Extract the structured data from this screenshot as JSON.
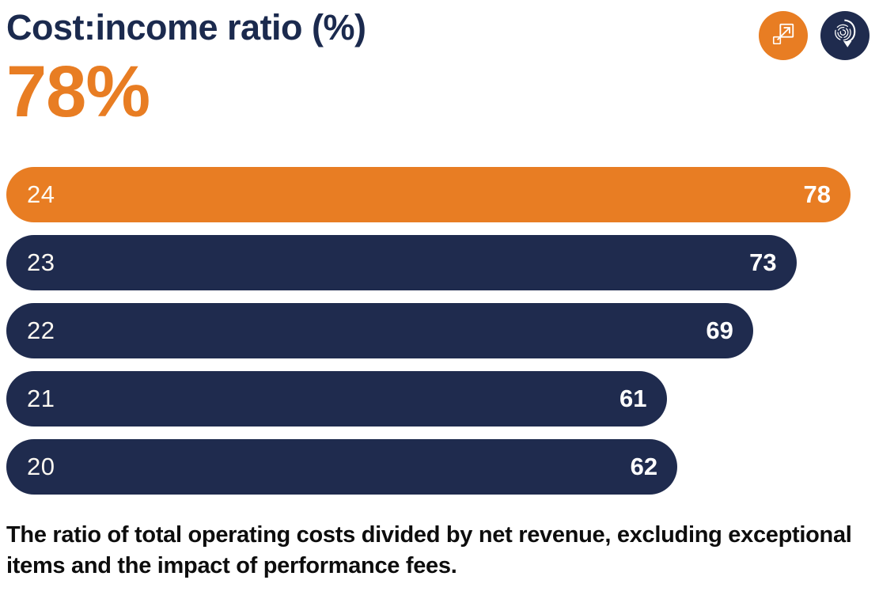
{
  "header": {
    "title": "Cost:income ratio (%)",
    "headline_value": "78%",
    "icons": [
      {
        "name": "expand-icon",
        "style": "orange-circle"
      },
      {
        "name": "fingerprint-download-icon",
        "style": "navy-circle"
      }
    ]
  },
  "chart_data": {
    "type": "bar",
    "orientation": "horizontal",
    "title": "Cost:income ratio (%)",
    "headline": "78%",
    "categories": [
      "24",
      "23",
      "22",
      "21",
      "20"
    ],
    "values": [
      78,
      73,
      69,
      61,
      62
    ],
    "xlim": [
      0,
      78
    ],
    "highlight_index": 0,
    "grid": false,
    "legend": "none",
    "value_labels": "inside-end",
    "category_labels": "inside-start",
    "colors": {
      "highlight": "#E87D23",
      "default": "#1F2B4E",
      "label_text": "#FFFFFF",
      "title_text": "#1B2A4E"
    }
  },
  "caption": "The ratio of total operating costs divided by net revenue, excluding exceptional items and the impact of performance fees."
}
